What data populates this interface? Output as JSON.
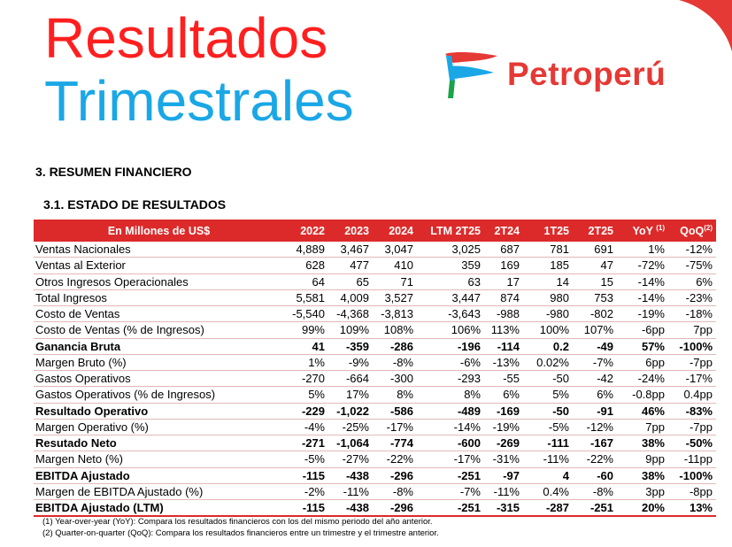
{
  "header": {
    "title_line1": "Resultados",
    "title_line2": "Trimestrales",
    "brand_name": "Petroperú"
  },
  "section": {
    "number_title": "3.  RESUMEN FINANCIERO",
    "sub_title": "3.1.  ESTADO DE RESULTADOS"
  },
  "colors": {
    "red": "#dc2a2a",
    "blue": "#1aa7e6",
    "logo_red": "#e53935",
    "logo_blue": "#1aa7e6",
    "logo_green": "#1ba34a"
  },
  "table": {
    "header_label": "En Millones de US$",
    "columns": [
      "2022",
      "2023",
      "2024",
      "LTM 2T25",
      "2T24",
      "1T25",
      "2T25",
      "YoY",
      "QoQ"
    ],
    "yoy_sup": "(1)",
    "qoq_sup": "(2)",
    "rows": [
      {
        "label": "Ventas Nacionales",
        "bold": false,
        "values": [
          "4,889",
          "3,467",
          "3,047",
          "3,025",
          "687",
          "781",
          "691",
          "1%",
          "-12%"
        ]
      },
      {
        "label": "Ventas al Exterior",
        "bold": false,
        "values": [
          "628",
          "477",
          "410",
          "359",
          "169",
          "185",
          "47",
          "-72%",
          "-75%"
        ]
      },
      {
        "label": "Otros Ingresos Operacionales",
        "bold": false,
        "values": [
          "64",
          "65",
          "71",
          "63",
          "17",
          "14",
          "15",
          "-14%",
          "6%"
        ]
      },
      {
        "label": "Total Ingresos",
        "bold": false,
        "values": [
          "5,581",
          "4,009",
          "3,527",
          "3,447",
          "874",
          "980",
          "753",
          "-14%",
          "-23%"
        ]
      },
      {
        "label": "Costo de Ventas",
        "bold": false,
        "values": [
          "-5,540",
          "-4,368",
          "-3,813",
          "-3,643",
          "-988",
          "-980",
          "-802",
          "-19%",
          "-18%"
        ]
      },
      {
        "label": "Costo de Ventas (% de Ingresos)",
        "bold": false,
        "values": [
          "99%",
          "109%",
          "108%",
          "106%",
          "113%",
          "100%",
          "107%",
          "-6pp",
          "7pp"
        ]
      },
      {
        "label": "Ganancia Bruta",
        "bold": true,
        "values": [
          "41",
          "-359",
          "-286",
          "-196",
          "-114",
          "0.2",
          "-49",
          "57%",
          "-100%"
        ]
      },
      {
        "label": "Margen Bruto (%)",
        "bold": false,
        "values": [
          "1%",
          "-9%",
          "-8%",
          "-6%",
          "-13%",
          "0.02%",
          "-7%",
          "6pp",
          "-7pp"
        ]
      },
      {
        "label": "Gastos Operativos",
        "bold": false,
        "values": [
          "-270",
          "-664",
          "-300",
          "-293",
          "-55",
          "-50",
          "-42",
          "-24%",
          "-17%"
        ]
      },
      {
        "label": "Gastos Operativos (% de Ingresos)",
        "bold": false,
        "values": [
          "5%",
          "17%",
          "8%",
          "8%",
          "6%",
          "5%",
          "6%",
          "-0.8pp",
          "0.4pp"
        ]
      },
      {
        "label": "Resultado Operativo",
        "bold": true,
        "values": [
          "-229",
          "-1,022",
          "-586",
          "-489",
          "-169",
          "-50",
          "-91",
          "46%",
          "-83%"
        ]
      },
      {
        "label": "Margen Operativo (%)",
        "bold": false,
        "values": [
          "-4%",
          "-25%",
          "-17%",
          "-14%",
          "-19%",
          "-5%",
          "-12%",
          "7pp",
          "-7pp"
        ]
      },
      {
        "label": "Resutado Neto",
        "bold": true,
        "values": [
          "-271",
          "-1,064",
          "-774",
          "-600",
          "-269",
          "-111",
          "-167",
          "38%",
          "-50%"
        ]
      },
      {
        "label": "Margen Neto (%)",
        "bold": false,
        "values": [
          "-5%",
          "-27%",
          "-22%",
          "-17%",
          "-31%",
          "-11%",
          "-22%",
          "9pp",
          "-11pp"
        ]
      },
      {
        "label": "EBITDA Ajustado",
        "bold": true,
        "values": [
          "-115",
          "-438",
          "-296",
          "-251",
          "-97",
          "4",
          "-60",
          "38%",
          "-100%"
        ]
      },
      {
        "label": "Margen de EBITDA Ajustado (%)",
        "bold": false,
        "values": [
          "-2%",
          "-11%",
          "-8%",
          "-7%",
          "-11%",
          "0.4%",
          "-8%",
          "3pp",
          "-8pp"
        ]
      },
      {
        "label": "EBITDA Ajustado (LTM)",
        "bold": true,
        "values": [
          "-115",
          "-438",
          "-296",
          "-251",
          "-315",
          "-287",
          "-251",
          "20%",
          "13%"
        ]
      }
    ]
  },
  "footnotes": [
    "(1) Year-over-year (YoY): Compara los resultados financieros con los del mismo periodo del año anterior.",
    "(2) Quarter-on-quarter (QoQ): Compara los resultados financieros entre un trimestre y el trimestre anterior."
  ]
}
